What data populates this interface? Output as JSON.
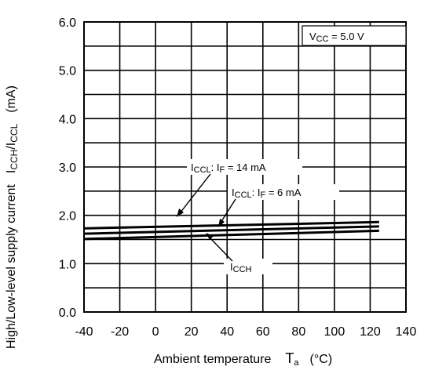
{
  "chart_data": {
    "type": "line",
    "xlabel": "Ambient temperature",
    "xlabel_symbol": "T",
    "xlabel_symbol_sub": "a",
    "xlabel_unit": "(°C)",
    "ylabel": "High/Low-level supply current",
    "ylabel_symbols": {
      "a_main": "I",
      "a_sub": "CCH",
      "sep": "/",
      "b_main": "I",
      "b_sub": "CCL"
    },
    "ylabel_unit": "(mA)",
    "xlim": [
      -40,
      140
    ],
    "ylim": [
      0,
      6
    ],
    "xticks": [
      "-40",
      "-20",
      "0",
      "20",
      "40",
      "60",
      "80",
      "100",
      "120",
      "140"
    ],
    "yticks": [
      "0.0",
      "1.0",
      "2.0",
      "3.0",
      "4.0",
      "5.0",
      "6.0"
    ],
    "grid": true,
    "series": [
      {
        "name_main": "I",
        "name_sub": "CCL",
        "name_rest": ": I",
        "name_sub2": "F",
        "name_tail": " = 14 mA",
        "x": [
          -40,
          125
        ],
        "y": [
          1.73,
          1.86
        ]
      },
      {
        "name_main": "I",
        "name_sub": "CCL",
        "name_rest": ": I",
        "name_sub2": "F",
        "name_tail": " = 6 mA",
        "x": [
          -40,
          125
        ],
        "y": [
          1.62,
          1.77
        ]
      },
      {
        "name_main": "I",
        "name_sub": "CCH",
        "name_rest": "",
        "name_sub2": "",
        "name_tail": "",
        "x": [
          -40,
          125
        ],
        "y": [
          1.51,
          1.68
        ]
      }
    ],
    "condition": {
      "main": "V",
      "sub": "CC",
      "rest": " = 5.0 V"
    }
  }
}
